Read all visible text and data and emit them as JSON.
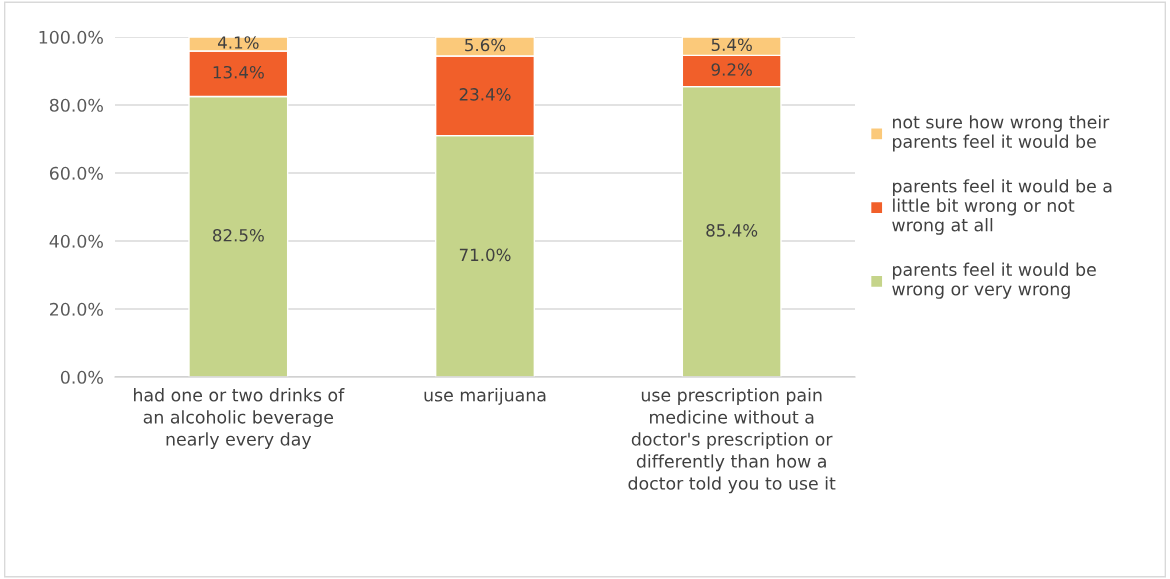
{
  "chart_data": {
    "type": "bar",
    "stacked": true,
    "categories": [
      "had one or two drinks of\nan alcoholic beverage\nnearly every day",
      "use marijuana",
      "use prescription pain\nmedicine without a\ndoctor's prescription or\ndifferently than how a\ndoctor told you to use it"
    ],
    "series": [
      {
        "name": "parents feel it would be\nwrong or very wrong",
        "color": "#c5d48a",
        "values": [
          82.5,
          71.0,
          85.4
        ],
        "value_labels": [
          "82.5%",
          "71.0%",
          "85.4%"
        ]
      },
      {
        "name": "parents feel it would be a\nlittle bit wrong or not\nwrong at all",
        "color": "#f15f2a",
        "values": [
          13.4,
          23.4,
          9.2
        ],
        "value_labels": [
          "13.4%",
          "23.4%",
          "9.2%"
        ]
      },
      {
        "name": "not sure how wrong their\nparents feel it would be",
        "color": "#fbc97a",
        "values": [
          4.1,
          5.6,
          5.4
        ],
        "value_labels": [
          "4.1%",
          "5.6%",
          "5.4%"
        ]
      }
    ],
    "ylim": [
      0,
      100
    ],
    "yticks": [
      {
        "value": 0,
        "label": "0.0%"
      },
      {
        "value": 20,
        "label": "20.0%"
      },
      {
        "value": 40,
        "label": "40.0%"
      },
      {
        "value": 60,
        "label": "60.0%"
      },
      {
        "value": 80,
        "label": "80.0%"
      },
      {
        "value": 100,
        "label": "100.0%"
      }
    ],
    "grid": "y",
    "legend": "right"
  }
}
